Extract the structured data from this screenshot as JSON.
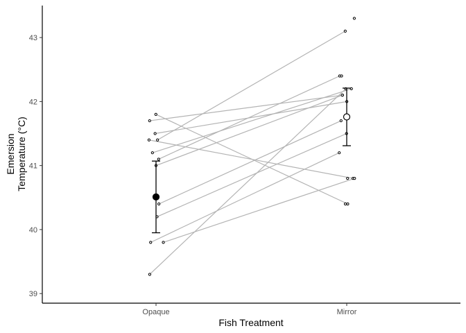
{
  "chart_data": {
    "type": "scatter",
    "title": "",
    "xlabel": "Fish Treatment",
    "ylabel": "Emersion Temperature (°C)",
    "ylabel_lines": [
      "Emersion",
      "Temperature (°C)"
    ],
    "categories": [
      "Opaque",
      "Mirror"
    ],
    "ylim": [
      38.85,
      43.5
    ],
    "yticks": [
      39,
      40,
      41,
      42,
      43
    ],
    "grid": false,
    "legend": "none",
    "pairs": [
      {
        "opaque": 41.8,
        "mirror": 40.4
      },
      {
        "opaque": 41.7,
        "mirror": 42.1
      },
      {
        "opaque": 41.5,
        "mirror": 42.0
      },
      {
        "opaque": 41.4,
        "mirror": 40.8
      },
      {
        "opaque": 41.4,
        "mirror": 43.1
      },
      {
        "opaque": 41.2,
        "mirror": 42.2
      },
      {
        "opaque": 41.1,
        "mirror": 42.4
      },
      {
        "opaque": 41.0,
        "mirror": 42.1
      },
      {
        "opaque": 40.4,
        "mirror": 41.7
      },
      {
        "opaque": 40.2,
        "mirror": 41.5
      },
      {
        "opaque": 39.8,
        "mirror": 41.2
      },
      {
        "opaque": 39.8,
        "mirror": 40.8
      },
      {
        "opaque": 39.3,
        "mirror": 42.2
      }
    ],
    "unpaired_points": [
      {
        "group": "Mirror",
        "value": 43.3
      },
      {
        "group": "Mirror",
        "value": 42.4
      },
      {
        "group": "Mirror",
        "value": 40.4
      },
      {
        "group": "Mirror",
        "value": 40.8
      }
    ],
    "summary": [
      {
        "group": "Opaque",
        "mean": 40.51,
        "lower": 39.95,
        "upper": 41.07,
        "marker": "filled",
        "color": "#000000"
      },
      {
        "group": "Mirror",
        "mean": 41.76,
        "lower": 41.31,
        "upper": 42.21,
        "marker": "open",
        "color": "#ffffff"
      }
    ],
    "colors": {
      "pair_line": "#b3b3b3",
      "axis": "#000000"
    }
  }
}
